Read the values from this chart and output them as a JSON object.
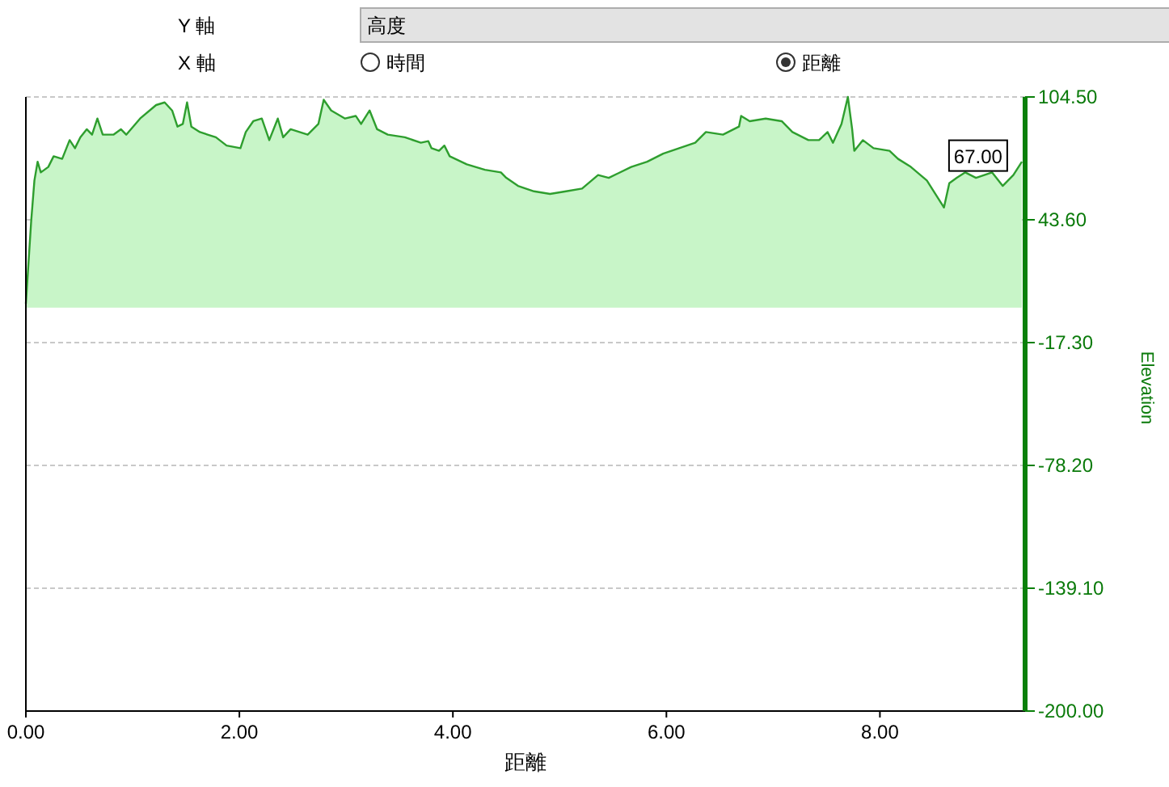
{
  "chart_data": {
    "type": "area",
    "xlabel": "距離",
    "ylabel": "Elevation",
    "annotations": [
      "Y 軸",
      "高度",
      "X 軸",
      "時間",
      "距離",
      {
        "text": "67.00",
        "x": 8.92,
        "y": 67
      }
    ],
    "xlim": [
      0,
      9.36
    ],
    "xticks": [
      {
        "value": 0,
        "label": "0.00"
      },
      {
        "value": 2,
        "label": "2.00"
      },
      {
        "value": 4,
        "label": "4.00"
      },
      {
        "value": 6,
        "label": "6.00"
      },
      {
        "value": 8,
        "label": "8.00"
      }
    ],
    "ylim": [
      -200,
      104.5
    ],
    "yticks": [
      {
        "value": 104.5,
        "label": "104.50"
      },
      {
        "value": 43.6,
        "label": "43.60"
      },
      {
        "value": -17.3,
        "label": "-17.30"
      },
      {
        "value": -78.2,
        "label": "-78.20"
      },
      {
        "value": -139.1,
        "label": "-139.10"
      },
      {
        "value": -200,
        "label": "-200.00"
      }
    ],
    "grid": "y",
    "series": [
      {
        "color": "#2e9e2e",
        "x": [
          0,
          0.05,
          0.08,
          0.11,
          0.14,
          0.21,
          0.26,
          0.34,
          0.41,
          0.46,
          0.51,
          0.57,
          0.62,
          0.67,
          0.72,
          0.82,
          0.89,
          0.94,
          1.07,
          1.22,
          1.3,
          1.37,
          1.42,
          1.47,
          1.51,
          1.55,
          1.63,
          1.78,
          1.88,
          2.01,
          2.06,
          2.13,
          2.21,
          2.28,
          2.36,
          2.41,
          2.48,
          2.64,
          2.74,
          2.79,
          2.86,
          2.99,
          3.09,
          3.14,
          3.22,
          3.29,
          3.39,
          3.55,
          3.7,
          3.77,
          3.8,
          3.87,
          3.92,
          3.97,
          4.13,
          4.3,
          4.45,
          4.5,
          4.61,
          4.76,
          4.91,
          5.06,
          5.21,
          5.36,
          5.46,
          5.67,
          5.82,
          5.97,
          6.12,
          6.27,
          6.37,
          6.53,
          6.68,
          6.7,
          6.78,
          6.93,
          7.08,
          7.18,
          7.33,
          7.43,
          7.51,
          7.56,
          7.64,
          7.7,
          7.74,
          7.76,
          7.84,
          7.94,
          8.09,
          8.17,
          8.29,
          8.44,
          8.52,
          8.6,
          8.65,
          8.72,
          8.8,
          8.9,
          9.05,
          9.15,
          9.25,
          9.33
        ],
        "values": [
          2,
          43.1,
          63.1,
          72.4,
          67.1,
          69.8,
          75.1,
          73.8,
          83.1,
          79.1,
          84.5,
          88.5,
          85.8,
          93.8,
          85.8,
          85.8,
          88.5,
          85.8,
          93.8,
          100.5,
          101.8,
          97.8,
          89.8,
          91.1,
          101.8,
          89.8,
          87.1,
          84.5,
          80.4,
          79.1,
          87.1,
          92.5,
          93.8,
          83.1,
          93.8,
          84.5,
          88.5,
          85.8,
          91.1,
          103.1,
          97.8,
          93.8,
          95.1,
          91.1,
          97.8,
          88.5,
          85.8,
          84.5,
          81.8,
          82.6,
          79.1,
          77.8,
          80.4,
          75.1,
          71.1,
          68.4,
          67.1,
          64.4,
          60.4,
          57.7,
          56.4,
          57.7,
          59.1,
          65.8,
          64.4,
          69.8,
          72.4,
          76.4,
          79.1,
          81.8,
          87.1,
          85.8,
          89.8,
          95.1,
          92.5,
          93.8,
          92.5,
          87.1,
          83.1,
          83.1,
          87.1,
          81.8,
          91.1,
          104.5,
          88.5,
          77.8,
          83.1,
          79.1,
          77.8,
          73.8,
          69.8,
          63.1,
          56.4,
          49.7,
          61.7,
          64.4,
          67.1,
          64.4,
          67.1,
          60.4,
          65.8,
          72.4
        ]
      }
    ]
  }
}
